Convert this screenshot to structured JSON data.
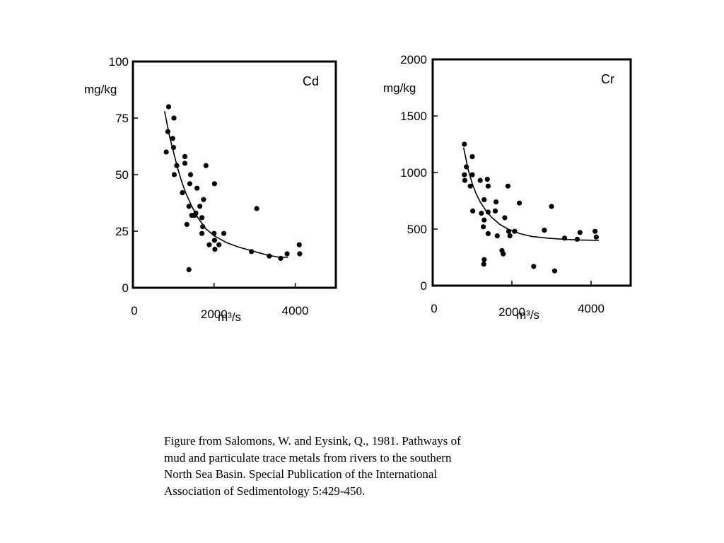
{
  "chart_data": [
    {
      "type": "scatter",
      "panel_label": "Cd",
      "ylabel": "mg/kg",
      "xlabel": "m³/s",
      "xlim": [
        0,
        5000
      ],
      "ylim": [
        0,
        100
      ],
      "xticks": [
        0,
        2000,
        4000
      ],
      "xtick_labels": [
        "0",
        "2000",
        "4000"
      ],
      "yticks": [
        0,
        25,
        50,
        75,
        100
      ],
      "ytick_labels": [
        "0",
        "25",
        "50",
        "75",
        "100"
      ],
      "points": [
        {
          "x": 880,
          "y": 80
        },
        {
          "x": 860,
          "y": 69
        },
        {
          "x": 980,
          "y": 66
        },
        {
          "x": 1010,
          "y": 75
        },
        {
          "x": 820,
          "y": 60
        },
        {
          "x": 1000,
          "y": 62
        },
        {
          "x": 1080,
          "y": 54
        },
        {
          "x": 1020,
          "y": 50
        },
        {
          "x": 1280,
          "y": 58
        },
        {
          "x": 1280,
          "y": 55
        },
        {
          "x": 1420,
          "y": 50
        },
        {
          "x": 1400,
          "y": 46
        },
        {
          "x": 1580,
          "y": 44
        },
        {
          "x": 1220,
          "y": 42
        },
        {
          "x": 1380,
          "y": 36
        },
        {
          "x": 1650,
          "y": 36
        },
        {
          "x": 1550,
          "y": 33
        },
        {
          "x": 1450,
          "y": 32
        },
        {
          "x": 1520,
          "y": 32
        },
        {
          "x": 1330,
          "y": 28
        },
        {
          "x": 1740,
          "y": 39
        },
        {
          "x": 1700,
          "y": 31
        },
        {
          "x": 1800,
          "y": 54
        },
        {
          "x": 2010,
          "y": 46
        },
        {
          "x": 1720,
          "y": 27
        },
        {
          "x": 1700,
          "y": 24
        },
        {
          "x": 2000,
          "y": 24
        },
        {
          "x": 2240,
          "y": 24
        },
        {
          "x": 2010,
          "y": 21
        },
        {
          "x": 1880,
          "y": 19
        },
        {
          "x": 2120,
          "y": 19
        },
        {
          "x": 2020,
          "y": 17
        },
        {
          "x": 2920,
          "y": 16
        },
        {
          "x": 3050,
          "y": 35
        },
        {
          "x": 3360,
          "y": 14
        },
        {
          "x": 3640,
          "y": 13
        },
        {
          "x": 3800,
          "y": 15
        },
        {
          "x": 4100,
          "y": 19
        },
        {
          "x": 4110,
          "y": 15
        },
        {
          "x": 1380,
          "y": 8
        }
      ],
      "fit_curve": [
        {
          "x": 780,
          "y": 78
        },
        {
          "x": 900,
          "y": 67
        },
        {
          "x": 1000,
          "y": 60
        },
        {
          "x": 1100,
          "y": 53
        },
        {
          "x": 1200,
          "y": 47
        },
        {
          "x": 1300,
          "y": 42
        },
        {
          "x": 1450,
          "y": 36
        },
        {
          "x": 1600,
          "y": 31
        },
        {
          "x": 1800,
          "y": 26
        },
        {
          "x": 2000,
          "y": 23
        },
        {
          "x": 2300,
          "y": 20
        },
        {
          "x": 2600,
          "y": 18
        },
        {
          "x": 3000,
          "y": 16
        },
        {
          "x": 3300,
          "y": 14.5
        },
        {
          "x": 3600,
          "y": 13.5
        },
        {
          "x": 3820,
          "y": 13.5
        }
      ]
    },
    {
      "type": "scatter",
      "panel_label": "Cr",
      "ylabel": "mg/kg",
      "xlabel": "m³/s",
      "xlim": [
        0,
        5000
      ],
      "ylim": [
        0,
        2000
      ],
      "xticks": [
        0,
        2000,
        4000
      ],
      "xtick_labels": [
        "0",
        "2000",
        "4000"
      ],
      "yticks": [
        0,
        500,
        1000,
        1500,
        2000
      ],
      "ytick_labels": [
        "0",
        "500",
        "1000",
        "1500",
        "2000"
      ],
      "points": [
        {
          "x": 800,
          "y": 1250
        },
        {
          "x": 850,
          "y": 1050
        },
        {
          "x": 1000,
          "y": 1140
        },
        {
          "x": 800,
          "y": 980
        },
        {
          "x": 1000,
          "y": 980
        },
        {
          "x": 810,
          "y": 930
        },
        {
          "x": 950,
          "y": 880
        },
        {
          "x": 1200,
          "y": 930
        },
        {
          "x": 1380,
          "y": 940
        },
        {
          "x": 1400,
          "y": 880
        },
        {
          "x": 1900,
          "y": 880
        },
        {
          "x": 1010,
          "y": 660
        },
        {
          "x": 1300,
          "y": 760
        },
        {
          "x": 1600,
          "y": 740
        },
        {
          "x": 1230,
          "y": 640
        },
        {
          "x": 1400,
          "y": 650
        },
        {
          "x": 1580,
          "y": 660
        },
        {
          "x": 1300,
          "y": 580
        },
        {
          "x": 1820,
          "y": 600
        },
        {
          "x": 2190,
          "y": 730
        },
        {
          "x": 1280,
          "y": 520
        },
        {
          "x": 1400,
          "y": 460
        },
        {
          "x": 1630,
          "y": 440
        },
        {
          "x": 1920,
          "y": 480
        },
        {
          "x": 1950,
          "y": 440
        },
        {
          "x": 2070,
          "y": 480
        },
        {
          "x": 2820,
          "y": 490
        },
        {
          "x": 3000,
          "y": 700
        },
        {
          "x": 3330,
          "y": 420
        },
        {
          "x": 3650,
          "y": 410
        },
        {
          "x": 3720,
          "y": 470
        },
        {
          "x": 4100,
          "y": 480
        },
        {
          "x": 4130,
          "y": 430
        },
        {
          "x": 1300,
          "y": 230
        },
        {
          "x": 1290,
          "y": 190
        },
        {
          "x": 1750,
          "y": 310
        },
        {
          "x": 1780,
          "y": 280
        },
        {
          "x": 2550,
          "y": 170
        },
        {
          "x": 3080,
          "y": 130
        }
      ],
      "fit_curve": [
        {
          "x": 780,
          "y": 1220
        },
        {
          "x": 900,
          "y": 1020
        },
        {
          "x": 1000,
          "y": 900
        },
        {
          "x": 1100,
          "y": 810
        },
        {
          "x": 1200,
          "y": 740
        },
        {
          "x": 1350,
          "y": 660
        },
        {
          "x": 1500,
          "y": 600
        },
        {
          "x": 1700,
          "y": 540
        },
        {
          "x": 1900,
          "y": 500
        },
        {
          "x": 2200,
          "y": 460
        },
        {
          "x": 2500,
          "y": 435
        },
        {
          "x": 2900,
          "y": 420
        },
        {
          "x": 3300,
          "y": 410
        },
        {
          "x": 3700,
          "y": 404
        },
        {
          "x": 4200,
          "y": 400
        }
      ]
    }
  ],
  "caption": {
    "lines": [
      "Figure from Salomons, W. and Eysink, Q., 1981. Pathways of",
      "mud and particulate trace metals from rivers to the southern",
      "North Sea Basin.  Special Publication of the International",
      "Association of Sedimentology 5:429-450."
    ]
  }
}
